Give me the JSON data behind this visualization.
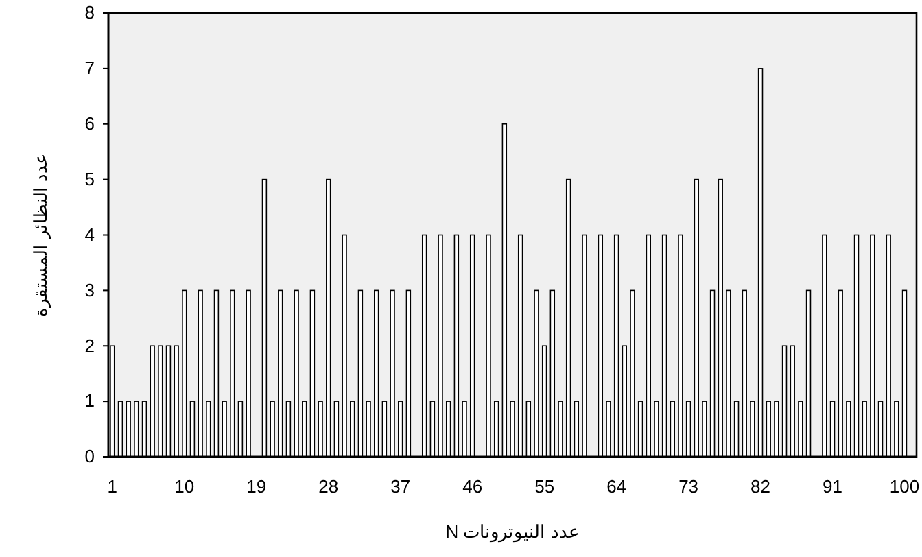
{
  "chart_data": {
    "type": "bar",
    "xlabel": "عدد النيوترونات N",
    "ylabel": "عدد النظائر المستقرة",
    "x": [
      1,
      2,
      3,
      4,
      5,
      6,
      7,
      8,
      9,
      10,
      11,
      12,
      13,
      14,
      15,
      16,
      17,
      18,
      19,
      20,
      21,
      22,
      23,
      24,
      25,
      26,
      27,
      28,
      29,
      30,
      31,
      32,
      33,
      34,
      35,
      36,
      37,
      38,
      39,
      40,
      41,
      42,
      43,
      44,
      45,
      46,
      47,
      48,
      49,
      50,
      51,
      52,
      53,
      54,
      55,
      56,
      57,
      58,
      59,
      60,
      61,
      62,
      63,
      64,
      65,
      66,
      67,
      68,
      69,
      70,
      71,
      72,
      73,
      74,
      75,
      76,
      77,
      78,
      79,
      80,
      81,
      82,
      83,
      84,
      85,
      86,
      87,
      88,
      89,
      90,
      91,
      92,
      93,
      94,
      95,
      96,
      97,
      98,
      99,
      100
    ],
    "values": [
      2,
      1,
      1,
      1,
      1,
      2,
      2,
      2,
      2,
      3,
      1,
      3,
      1,
      3,
      1,
      3,
      1,
      3,
      0,
      5,
      1,
      3,
      1,
      3,
      1,
      3,
      1,
      5,
      1,
      4,
      1,
      3,
      1,
      3,
      1,
      3,
      1,
      3,
      0,
      4,
      1,
      4,
      1,
      4,
      1,
      4,
      0,
      4,
      1,
      6,
      1,
      4,
      1,
      3,
      2,
      3,
      1,
      5,
      1,
      4,
      0,
      4,
      1,
      4,
      2,
      3,
      1,
      4,
      1,
      4,
      1,
      4,
      1,
      5,
      1,
      3,
      5,
      3,
      1,
      3,
      1,
      7,
      1,
      1,
      2,
      2,
      1,
      3,
      0,
      4,
      1,
      3,
      1,
      4,
      1,
      4,
      1,
      4,
      1,
      3
    ],
    "color": "#ffffff",
    "xlim": [
      0.5,
      101.5
    ],
    "xticks": [
      1,
      10,
      19,
      28,
      37,
      46,
      55,
      64,
      73,
      82,
      91,
      100
    ],
    "ylim": [
      0,
      8
    ],
    "yticks": [
      0,
      1,
      2,
      3,
      4,
      5,
      6,
      7,
      8
    ]
  }
}
